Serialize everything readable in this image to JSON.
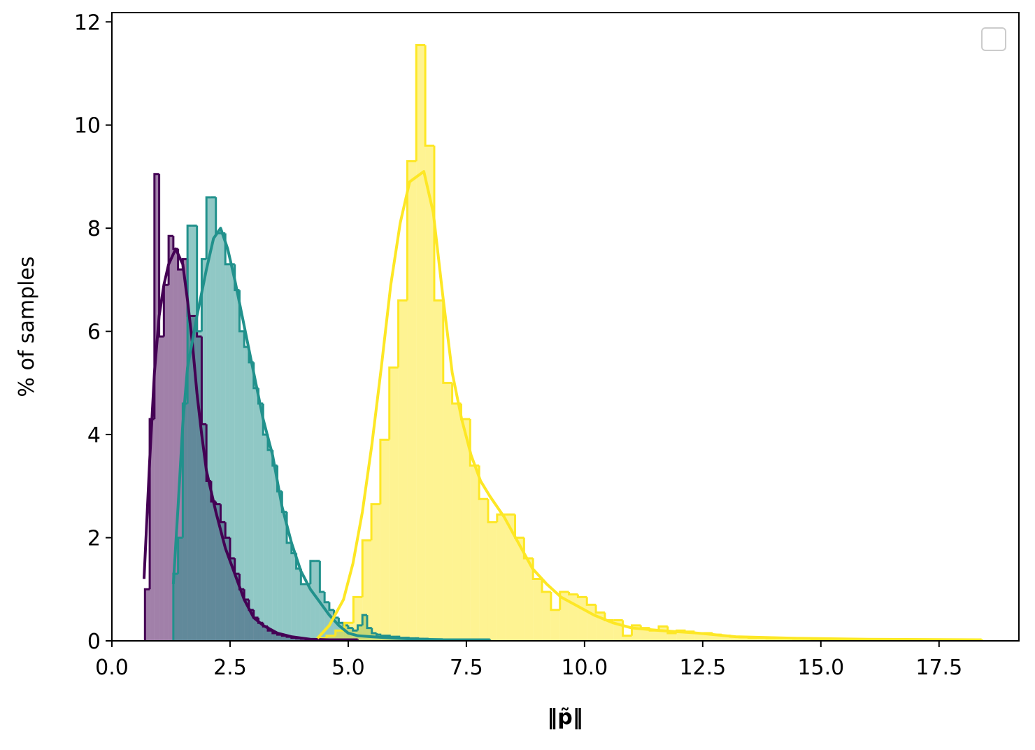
{
  "chart_data": {
    "type": "histogram",
    "xlabel": "‖p̃‖",
    "ylabel": "% of samples",
    "xlim": [
      0,
      19.19
    ],
    "ylim": [
      0,
      12.18
    ],
    "xticks": [
      {
        "value": 0,
        "label": "0.0"
      },
      2.5,
      {
        "value": 5,
        "label": "5.0"
      },
      7.5,
      {
        "value": 10,
        "label": "10.0"
      },
      12.5,
      {
        "value": 15,
        "label": "15.0"
      },
      17.5
    ],
    "yticks": [
      0,
      2,
      4,
      6,
      8,
      10,
      12
    ],
    "legend": "upper right",
    "series": [
      {
        "color": "#440154",
        "bins": [
          0.7,
          0.8,
          0.9,
          1.0,
          1.1,
          1.2,
          1.3,
          1.4,
          1.5,
          1.6,
          1.7,
          1.8,
          1.9,
          2.0,
          2.1,
          2.2,
          2.3,
          2.4,
          2.5,
          2.6,
          2.7,
          2.8,
          2.9,
          3.0,
          3.1,
          3.2,
          3.3,
          3.4,
          3.5,
          3.6,
          3.7,
          3.8,
          3.9,
          4.0,
          4.1,
          4.2,
          4.3,
          4.4,
          4.5,
          4.6,
          4.7,
          4.8,
          4.9,
          5.0,
          5.1,
          5.2
        ],
        "values": [
          1.0,
          4.3,
          9.05,
          5.9,
          6.9,
          7.85,
          7.6,
          7.2,
          7.4,
          6.3,
          6.3,
          5.9,
          4.2,
          3.1,
          2.7,
          2.65,
          2.3,
          2.0,
          1.6,
          1.3,
          1.0,
          0.8,
          0.6,
          0.45,
          0.35,
          0.28,
          0.2,
          0.15,
          0.12,
          0.1,
          0.08,
          0.06,
          0.05,
          0.04,
          0.03,
          0.03,
          0.02,
          0.02,
          0.02,
          0.01,
          0.01,
          0.01,
          0.01,
          0.01,
          0.01
        ],
        "kde": {
          "x": [
            0.68,
            0.8,
            0.9,
            1.0,
            1.1,
            1.2,
            1.35,
            1.5,
            1.6,
            1.7,
            1.8,
            1.9,
            2.0,
            2.2,
            2.4,
            2.6,
            2.8,
            3.0,
            3.2,
            3.5,
            3.8,
            4.2,
            4.6,
            5.2
          ],
          "values": [
            1.2,
            3.5,
            5.2,
            6.3,
            6.9,
            7.3,
            7.6,
            7.3,
            6.6,
            5.8,
            4.8,
            4.0,
            3.3,
            2.5,
            1.8,
            1.3,
            0.8,
            0.45,
            0.3,
            0.15,
            0.08,
            0.03,
            0.02,
            0.02
          ]
        }
      },
      {
        "color": "#21918c",
        "bins": [
          1.3,
          1.4,
          1.5,
          1.6,
          1.7,
          1.8,
          1.9,
          2.0,
          2.1,
          2.2,
          2.3,
          2.4,
          2.5,
          2.6,
          2.7,
          2.8,
          2.9,
          3.0,
          3.1,
          3.2,
          3.3,
          3.4,
          3.5,
          3.6,
          3.7,
          3.8,
          3.9,
          4.0,
          4.1,
          4.2,
          4.3,
          4.4,
          4.5,
          4.6,
          4.7,
          4.8,
          4.9,
          5.0,
          5.1,
          5.2,
          5.3,
          5.4,
          5.5,
          5.6,
          5.7,
          5.8,
          5.9,
          6.0,
          6.1,
          6.2,
          6.3,
          6.4,
          6.5,
          6.6,
          6.7,
          6.8,
          6.9,
          7.0,
          7.1,
          7.2,
          7.3,
          7.4,
          7.5,
          7.6,
          7.7,
          7.8,
          7.9,
          8.0
        ],
        "values": [
          1.3,
          2.0,
          4.6,
          8.05,
          8.05,
          6.0,
          7.4,
          8.6,
          8.6,
          7.9,
          7.9,
          7.3,
          7.3,
          6.8,
          6.0,
          5.7,
          5.4,
          4.9,
          4.6,
          4.0,
          3.7,
          3.4,
          2.9,
          2.5,
          1.9,
          1.7,
          1.4,
          1.1,
          1.1,
          1.55,
          1.55,
          0.95,
          0.75,
          0.6,
          0.45,
          0.35,
          0.3,
          0.25,
          0.2,
          0.3,
          0.5,
          0.25,
          0.15,
          0.12,
          0.1,
          0.1,
          0.08,
          0.08,
          0.06,
          0.06,
          0.05,
          0.05,
          0.04,
          0.04,
          0.03,
          0.03,
          0.03,
          0.02,
          0.02,
          0.02,
          0.02,
          0.01,
          0.01,
          0.01,
          0.01,
          0.01,
          0.01
        ],
        "kde": {
          "x": [
            1.3,
            1.4,
            1.5,
            1.6,
            1.8,
            2.0,
            2.15,
            2.3,
            2.45,
            2.6,
            2.8,
            3.0,
            3.2,
            3.4,
            3.6,
            3.8,
            4.0,
            4.2,
            4.4,
            4.6,
            4.8,
            5.0,
            5.2,
            5.5,
            6.0,
            6.5,
            7.0,
            8.0
          ],
          "values": [
            1.1,
            2.6,
            4.2,
            5.3,
            6.3,
            7.2,
            7.8,
            8.0,
            7.6,
            7.0,
            6.1,
            5.2,
            4.3,
            3.6,
            2.6,
            1.9,
            1.35,
            1.0,
            0.75,
            0.5,
            0.3,
            0.15,
            0.1,
            0.08,
            0.05,
            0.03,
            0.02,
            0.02
          ]
        }
      },
      {
        "color": "#fde725",
        "bins": [
          4.35,
          4.54,
          4.73,
          4.92,
          5.11,
          5.3,
          5.49,
          5.68,
          5.87,
          6.06,
          6.25,
          6.44,
          6.63,
          6.82,
          7.01,
          7.2,
          7.39,
          7.58,
          7.77,
          7.96,
          8.15,
          8.34,
          8.53,
          8.72,
          8.91,
          9.1,
          9.29,
          9.48,
          9.67,
          9.86,
          10.05,
          10.24,
          10.43,
          10.62,
          10.81,
          11.0,
          11.19,
          11.38,
          11.57,
          11.76,
          11.95,
          12.14,
          12.33,
          12.52,
          12.71,
          12.9,
          13.09,
          13.28,
          13.47,
          13.66,
          13.85,
          14.04,
          14.23,
          14.42,
          14.61,
          14.8,
          14.99,
          15.18,
          15.37,
          15.56,
          15.75,
          15.94,
          16.13,
          16.32,
          16.51,
          16.7,
          16.89,
          17.08,
          17.27,
          17.46,
          17.65,
          17.84,
          18.03,
          18.22,
          18.41
        ],
        "values": [
          0.05,
          0.1,
          0.2,
          0.35,
          0.85,
          1.95,
          2.65,
          3.9,
          5.3,
          6.6,
          9.3,
          11.55,
          9.6,
          6.6,
          5.0,
          4.6,
          4.3,
          3.4,
          2.75,
          2.3,
          2.45,
          2.45,
          2.0,
          1.6,
          1.2,
          0.95,
          0.6,
          0.95,
          0.9,
          0.85,
          0.7,
          0.55,
          0.4,
          0.4,
          0.1,
          0.3,
          0.25,
          0.2,
          0.28,
          0.15,
          0.2,
          0.18,
          0.15,
          0.15,
          0.12,
          0.1,
          0.08,
          0.07,
          0.06,
          0.06,
          0.05,
          0.05,
          0.05,
          0.04,
          0.04,
          0.03,
          0.03,
          0.03,
          0.03,
          0.02,
          0.02,
          0.03,
          0.02,
          0.02,
          0.02,
          0.01,
          0.01,
          0.01,
          0.01,
          0.01,
          0.01,
          0.01,
          0.01,
          0.01
        ],
        "kde": {
          "x": [
            4.35,
            4.6,
            4.9,
            5.1,
            5.3,
            5.5,
            5.7,
            5.9,
            6.1,
            6.3,
            6.6,
            6.8,
            7.0,
            7.2,
            7.4,
            7.6,
            7.8,
            8.0,
            8.3,
            8.6,
            8.9,
            9.2,
            9.5,
            9.8,
            10.2,
            10.6,
            11.0,
            11.6,
            12.4,
            13.2,
            14.5,
            16,
            18.4
          ],
          "values": [
            0.05,
            0.3,
            0.8,
            1.5,
            2.5,
            3.8,
            5.3,
            6.9,
            8.1,
            8.9,
            9.1,
            8.3,
            6.7,
            5.2,
            4.3,
            3.6,
            3.1,
            2.8,
            2.4,
            1.9,
            1.4,
            1.1,
            0.85,
            0.7,
            0.5,
            0.35,
            0.25,
            0.2,
            0.15,
            0.08,
            0.05,
            0.03,
            0.02
          ]
        }
      }
    ]
  }
}
